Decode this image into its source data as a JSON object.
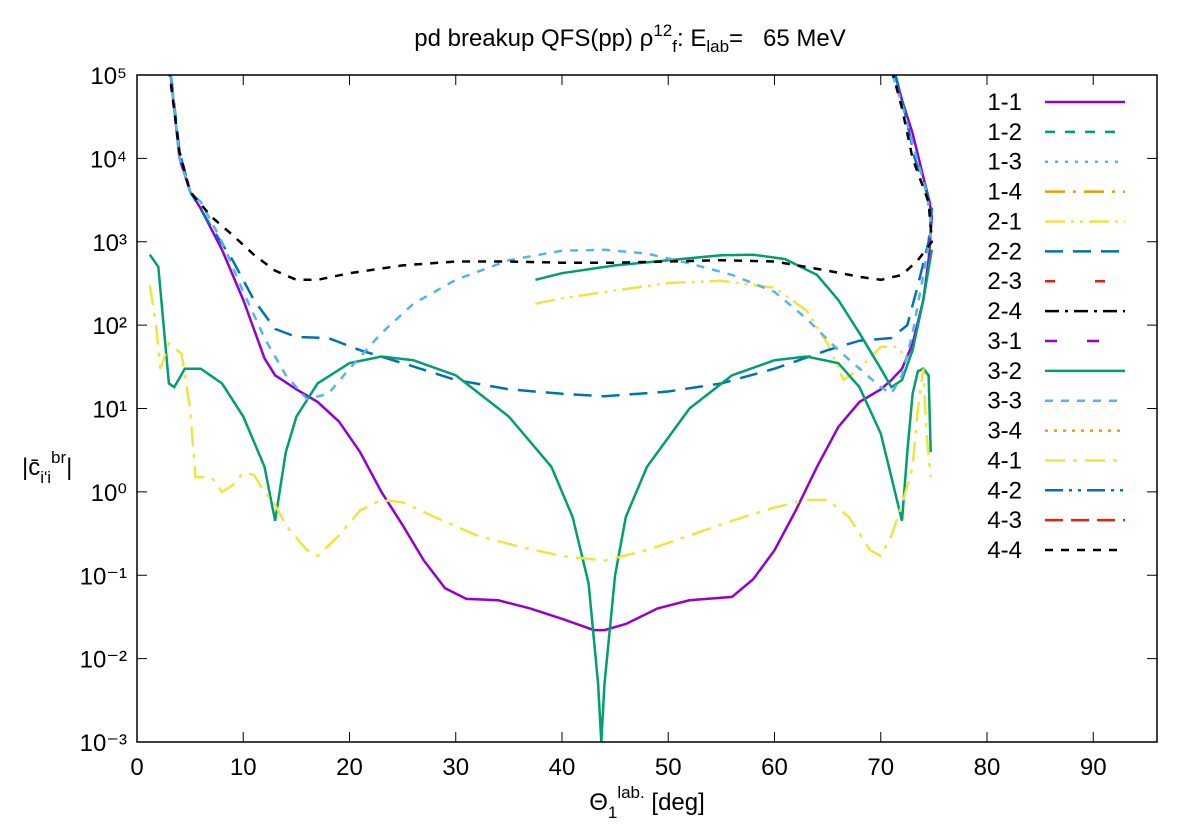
{
  "chart_data": {
    "type": "line",
    "title": [
      "pd breakup QFS(pp) ρ",
      "12",
      "f",
      ": E",
      "lab",
      "=   65 MeV"
    ],
    "xlabel": [
      "Θ",
      "1",
      "lab.",
      " [deg]"
    ],
    "ylabel": [
      "|c̄",
      "i'i",
      "br",
      "|"
    ],
    "xlim": [
      0,
      96
    ],
    "xticks": [
      0,
      10,
      20,
      30,
      40,
      50,
      60,
      70,
      80,
      90
    ],
    "ylim": [
      0.001,
      100000
    ],
    "log_y": true,
    "yticks": [
      {
        "value": 0.001,
        "label": "10⁻³"
      },
      {
        "value": 0.01,
        "label": "10⁻²"
      },
      {
        "value": 0.1,
        "label": "10⁻¹"
      },
      {
        "value": 1,
        "label": "10⁰"
      },
      {
        "value": 10,
        "label": "10¹"
      },
      {
        "value": 100,
        "label": "10²"
      },
      {
        "value": 1000,
        "label": "10³"
      },
      {
        "value": 10000,
        "label": "10⁴"
      },
      {
        "value": 100000,
        "label": "10⁵"
      }
    ],
    "legend": "top-right",
    "series": [
      {
        "name": "1-1",
        "color": "#9400d3",
        "dash": "none",
        "x": [
          3.1,
          3.6,
          4,
          5,
          6,
          8,
          10,
          12,
          13,
          15,
          17,
          19,
          21,
          23,
          25,
          27,
          29,
          31,
          34,
          37,
          40,
          43,
          44,
          46,
          49,
          52,
          56,
          58,
          60,
          62,
          64,
          66,
          68,
          70,
          71,
          72,
          73,
          74,
          74.5,
          74.8,
          74.6,
          74,
          73,
          72,
          71.2
        ],
        "values": [
          120000,
          30000,
          10000,
          4000,
          2500,
          800,
          200,
          40,
          25,
          17,
          12,
          7,
          3,
          1,
          0.4,
          0.15,
          0.07,
          0.052,
          0.05,
          0.04,
          0.03,
          0.022,
          0.022,
          0.026,
          0.04,
          0.05,
          0.055,
          0.09,
          0.2,
          0.6,
          2,
          6,
          12,
          17,
          22,
          30,
          60,
          200,
          600,
          2000,
          3000,
          6000,
          20000,
          50000,
          120000
        ]
      },
      {
        "name": "1-2",
        "color": "#009e73",
        "dash": "10,10"
      },
      {
        "name": "1-3",
        "color": "#56b4e9",
        "dash": "3,7"
      },
      {
        "name": "1-4",
        "color": "#e69f00",
        "dash": "20,8,3,8"
      },
      {
        "name": "2-1",
        "color": "#f0e442",
        "dash": "20,6,3,6,3,6",
        "x": [
          37.5,
          40,
          45,
          50,
          55,
          60,
          63,
          65,
          66.5,
          68,
          70,
          71.5,
          72.5
        ],
        "values": [
          180,
          210,
          260,
          320,
          340,
          280,
          150,
          60,
          22,
          30,
          55,
          55,
          40
        ]
      },
      {
        "name": "2-2",
        "color": "#0072b2",
        "dash": "18,10",
        "x": [
          3.2,
          4,
          5,
          7,
          9,
          11,
          13,
          15,
          18,
          21,
          25,
          30,
          35,
          40,
          44,
          50,
          55,
          60,
          65,
          68,
          71,
          72.5,
          73.5,
          74.5,
          74.8,
          74.3,
          73.2,
          72.2,
          71.3
        ],
        "values": [
          100000,
          12000,
          4000,
          1500,
          600,
          200,
          90,
          72,
          70,
          50,
          35,
          22,
          17,
          15,
          14,
          16,
          20,
          30,
          50,
          65,
          70,
          100,
          300,
          1000,
          2500,
          4000,
          10000,
          40000,
          110000
        ]
      },
      {
        "name": "2-3",
        "color": "#e51e10",
        "dash": "10,40"
      },
      {
        "name": "2-4",
        "color": "#000000",
        "dash": "14,6,3,6"
      },
      {
        "name": "3-1",
        "color": "#9400d3",
        "dash": "12,30"
      },
      {
        "name": "3-2",
        "color": "#009e73",
        "dash": "none",
        "x": [
          1.2,
          2,
          2.5,
          3,
          3.5,
          4.5,
          6,
          8,
          10,
          12,
          13,
          14,
          15,
          17,
          20,
          23,
          26,
          30,
          35,
          39,
          41,
          42.5,
          43.4,
          43.7,
          44,
          45,
          46,
          48,
          52,
          56,
          60,
          63,
          66,
          68,
          70,
          71,
          72,
          72.5,
          73,
          73.5,
          74,
          74.5,
          74.7,
          null,
          37.5,
          40,
          45,
          50,
          55,
          58,
          61,
          64,
          66,
          68,
          70,
          71,
          72,
          73,
          74,
          74.8
        ],
        "values": [
          700,
          500,
          100,
          20,
          18,
          30,
          30,
          20,
          8,
          2,
          0.45,
          3,
          8,
          20,
          35,
          42,
          38,
          25,
          8,
          2,
          0.5,
          0.08,
          0.005,
          0.001,
          0.005,
          0.1,
          0.5,
          2,
          10,
          25,
          38,
          42,
          35,
          18,
          5,
          1.5,
          0.45,
          3,
          15,
          28,
          30,
          25,
          3,
          null,
          350,
          420,
          520,
          600,
          690,
          700,
          620,
          400,
          200,
          80,
          30,
          18,
          22,
          50,
          200,
          800
        ]
      },
      {
        "name": "3-3",
        "color": "#56b4e9",
        "dash": "8,8",
        "x": [
          3.2,
          4,
          5,
          6,
          8,
          10,
          12,
          14,
          16,
          18,
          20,
          23,
          26,
          30,
          35,
          40,
          44,
          48,
          52,
          56,
          60,
          63,
          66,
          68,
          70,
          71,
          72,
          73,
          74,
          74.8,
          74.3,
          73,
          72,
          71
        ],
        "values": [
          100000,
          10000,
          4000,
          3000,
          1000,
          250,
          70,
          25,
          13,
          15,
          30,
          80,
          180,
          350,
          600,
          780,
          800,
          720,
          550,
          400,
          250,
          120,
          50,
          30,
          18,
          15,
          25,
          80,
          400,
          1500,
          4000,
          15000,
          45000,
          110000
        ]
      },
      {
        "name": "3-4",
        "color": "#e69f00",
        "dash": "3,6"
      },
      {
        "name": "4-1",
        "color": "#f0e442",
        "dash": "20,8,4,8",
        "x": [
          1.2,
          1.8,
          2.2,
          3,
          4.2,
          5,
          5.5,
          7,
          8,
          9,
          10,
          11,
          12,
          13,
          14,
          16,
          17,
          19,
          21,
          23,
          25,
          28,
          32,
          36,
          40,
          44,
          48,
          52,
          56,
          60,
          63,
          65,
          67,
          69,
          70,
          71,
          72,
          73,
          73.5,
          74,
          74.3,
          74.7
        ],
        "values": [
          300,
          100,
          30,
          60,
          45,
          10,
          1.5,
          1.5,
          1,
          1.2,
          1.7,
          1.6,
          1,
          0.7,
          0.4,
          0.2,
          0.17,
          0.3,
          0.6,
          0.8,
          0.75,
          0.5,
          0.3,
          0.22,
          0.17,
          0.15,
          0.2,
          0.3,
          0.45,
          0.65,
          0.8,
          0.8,
          0.5,
          0.2,
          0.17,
          0.3,
          0.7,
          2,
          10,
          30,
          5,
          1.5
        ]
      },
      {
        "name": "4-2",
        "color": "#0072b2",
        "dash": "18,6,3,6,3,6"
      },
      {
        "name": "4-3",
        "color": "#e51e10",
        "dash": "18,8"
      },
      {
        "name": "4-4",
        "color": "#000000",
        "dash": "8,8",
        "x": [
          3,
          4,
          5,
          7,
          9,
          11,
          13,
          15,
          17,
          20,
          25,
          30,
          35,
          40,
          45,
          50,
          55,
          60,
          65,
          68,
          70,
          72,
          73.5,
          74.8,
          74.5,
          73,
          72,
          71
        ],
        "values": [
          120000,
          12000,
          4000,
          2000,
          1200,
          700,
          450,
          350,
          350,
          420,
          520,
          580,
          580,
          560,
          560,
          580,
          600,
          580,
          450,
          380,
          350,
          400,
          600,
          1000,
          3000,
          10000,
          40000,
          120000
        ]
      }
    ]
  }
}
